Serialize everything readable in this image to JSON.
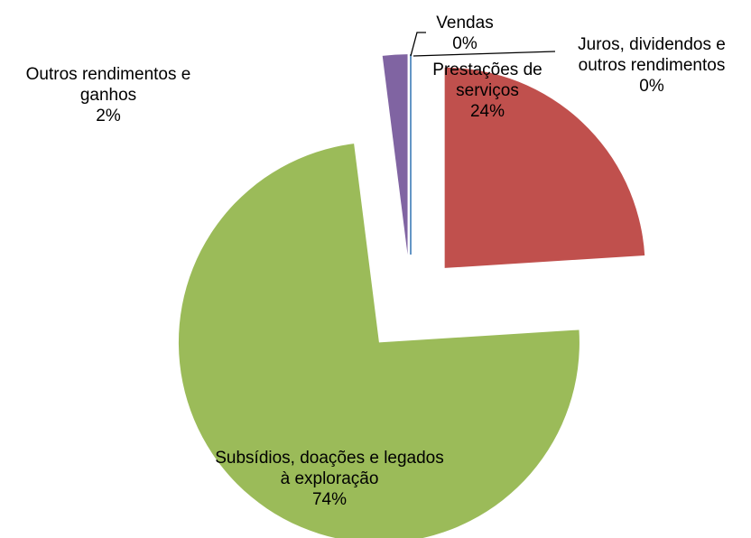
{
  "chart_data": {
    "type": "pie",
    "categories": [
      "Vendas",
      "Prestações de serviços",
      "Subsídios, doações e legados à exploração",
      "Outros rendimentos e ganhos",
      "Juros, dividendos e outros rendimentos"
    ],
    "values": [
      0,
      24,
      74,
      2,
      0
    ],
    "value_labels": [
      "0%",
      "24%",
      "74%",
      "2%",
      "0%"
    ],
    "colors": [
      "#4f81bd",
      "#c0504d",
      "#9bbb59",
      "#8064a2",
      "#4bacc6"
    ],
    "exploded": true
  }
}
